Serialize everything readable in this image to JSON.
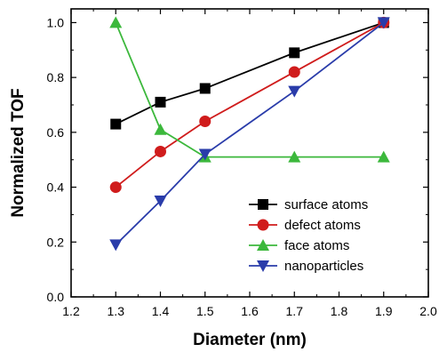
{
  "chart_data": {
    "type": "line",
    "title": "",
    "xlabel": "Diameter (nm)",
    "ylabel": "Normalized TOF",
    "xlim": [
      1.2,
      2.0
    ],
    "ylim": [
      0.0,
      1.05
    ],
    "xticks": [
      1.2,
      1.3,
      1.4,
      1.5,
      1.6,
      1.7,
      1.8,
      1.9,
      2.0
    ],
    "xtick_labels": [
      "1.2",
      "1.3",
      "1.4",
      "1.5",
      "1.6",
      "1.7",
      "1.8",
      "1.9",
      "2.0"
    ],
    "yticks": [
      0.0,
      0.2,
      0.4,
      0.6,
      0.8,
      1.0
    ],
    "ytick_labels": [
      "0.0",
      "0.2",
      "0.4",
      "0.6",
      "0.8",
      "1.0"
    ],
    "grid": false,
    "legend_position": "bottom-right",
    "series": [
      {
        "name": "surface atoms",
        "color": "#000000",
        "marker": "square",
        "x": [
          1.3,
          1.4,
          1.5,
          1.7,
          1.9
        ],
        "y": [
          0.63,
          0.71,
          0.76,
          0.89,
          1.0
        ]
      },
      {
        "name": "defect atoms",
        "color": "#d01c1c",
        "marker": "circle",
        "x": [
          1.3,
          1.4,
          1.5,
          1.7,
          1.9
        ],
        "y": [
          0.4,
          0.53,
          0.64,
          0.82,
          1.0
        ]
      },
      {
        "name": "face atoms",
        "color": "#3cb83c",
        "marker": "triangle-up",
        "x": [
          1.3,
          1.4,
          1.5,
          1.7,
          1.9
        ],
        "y": [
          1.0,
          0.61,
          0.51,
          0.51,
          0.51
        ]
      },
      {
        "name": "nanoparticles",
        "color": "#2a3caa",
        "marker": "triangle-down",
        "x": [
          1.3,
          1.4,
          1.5,
          1.7,
          1.9
        ],
        "y": [
          0.19,
          0.35,
          0.52,
          0.75,
          1.0
        ]
      }
    ]
  }
}
